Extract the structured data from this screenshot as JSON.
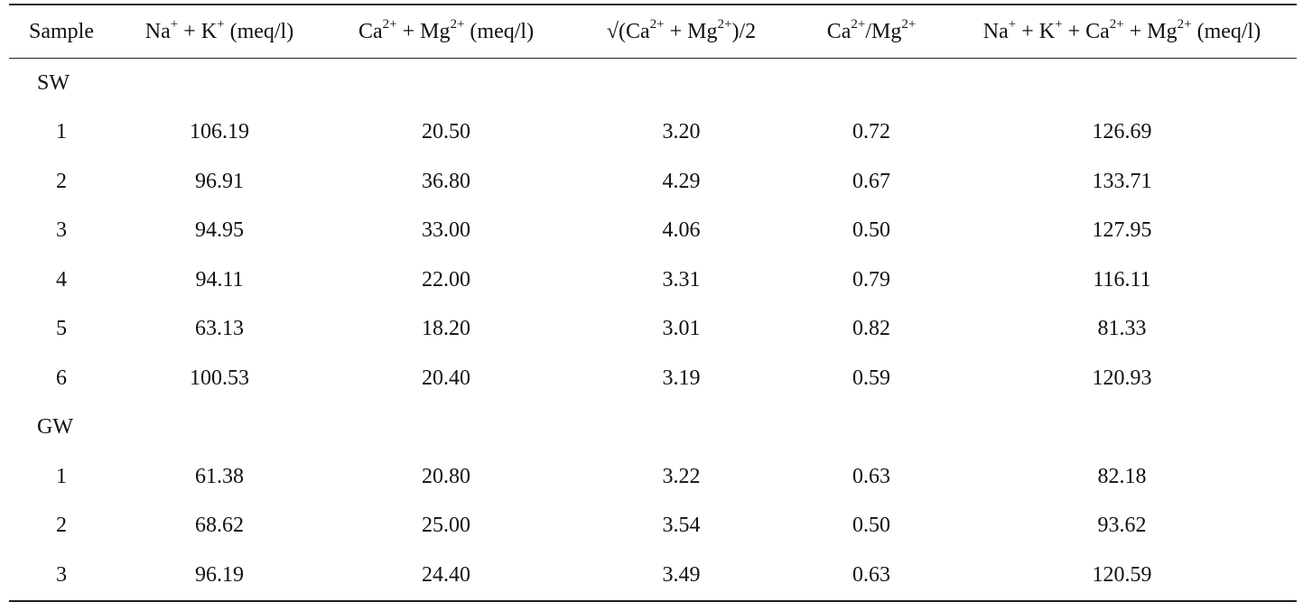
{
  "headers": {
    "sample": "Sample",
    "nak": {
      "p1": "Na",
      "s1": "+",
      "p2": " + K",
      "s2": "+",
      "p3": " (meq/l)"
    },
    "camg": {
      "p1": "Ca",
      "s1": "2+",
      "p2": " + Mg",
      "s2": "2+",
      "p3": " (meq/l)"
    },
    "sqrt": {
      "p1": "√(Ca",
      "s1": "2+",
      "p2": " + Mg",
      "s2": "2+",
      "p3": ")/2"
    },
    "ratio": {
      "p1": "Ca",
      "s1": "2+",
      "p2": "/Mg",
      "s2": "2+"
    },
    "total": {
      "p1": "Na",
      "s1": "+",
      "p2": " + K",
      "s2": "+",
      "p3": " + Ca",
      "s3": "2+",
      "p4": " + Mg",
      "s4": "2+",
      "p5": " (meq/l)"
    }
  },
  "groups": [
    {
      "label": "SW",
      "rows": [
        [
          "1",
          "106.19",
          "20.50",
          "3.20",
          "0.72",
          "126.69"
        ],
        [
          "2",
          "96.91",
          "36.80",
          "4.29",
          "0.67",
          "133.71"
        ],
        [
          "3",
          "94.95",
          "33.00",
          "4.06",
          "0.50",
          "127.95"
        ],
        [
          "4",
          "94.11",
          "22.00",
          "3.31",
          "0.79",
          "116.11"
        ],
        [
          "5",
          "63.13",
          "18.20",
          "3.01",
          "0.82",
          "81.33"
        ],
        [
          "6",
          "100.53",
          "20.40",
          "3.19",
          "0.59",
          "120.93"
        ]
      ]
    },
    {
      "label": "GW",
      "rows": [
        [
          "1",
          "61.38",
          "20.80",
          "3.22",
          "0.63",
          "82.18"
        ],
        [
          "2",
          "68.62",
          "25.00",
          "3.54",
          "0.50",
          "93.62"
        ],
        [
          "3",
          "96.19",
          "24.40",
          "3.49",
          "0.63",
          "120.59"
        ]
      ]
    }
  ]
}
